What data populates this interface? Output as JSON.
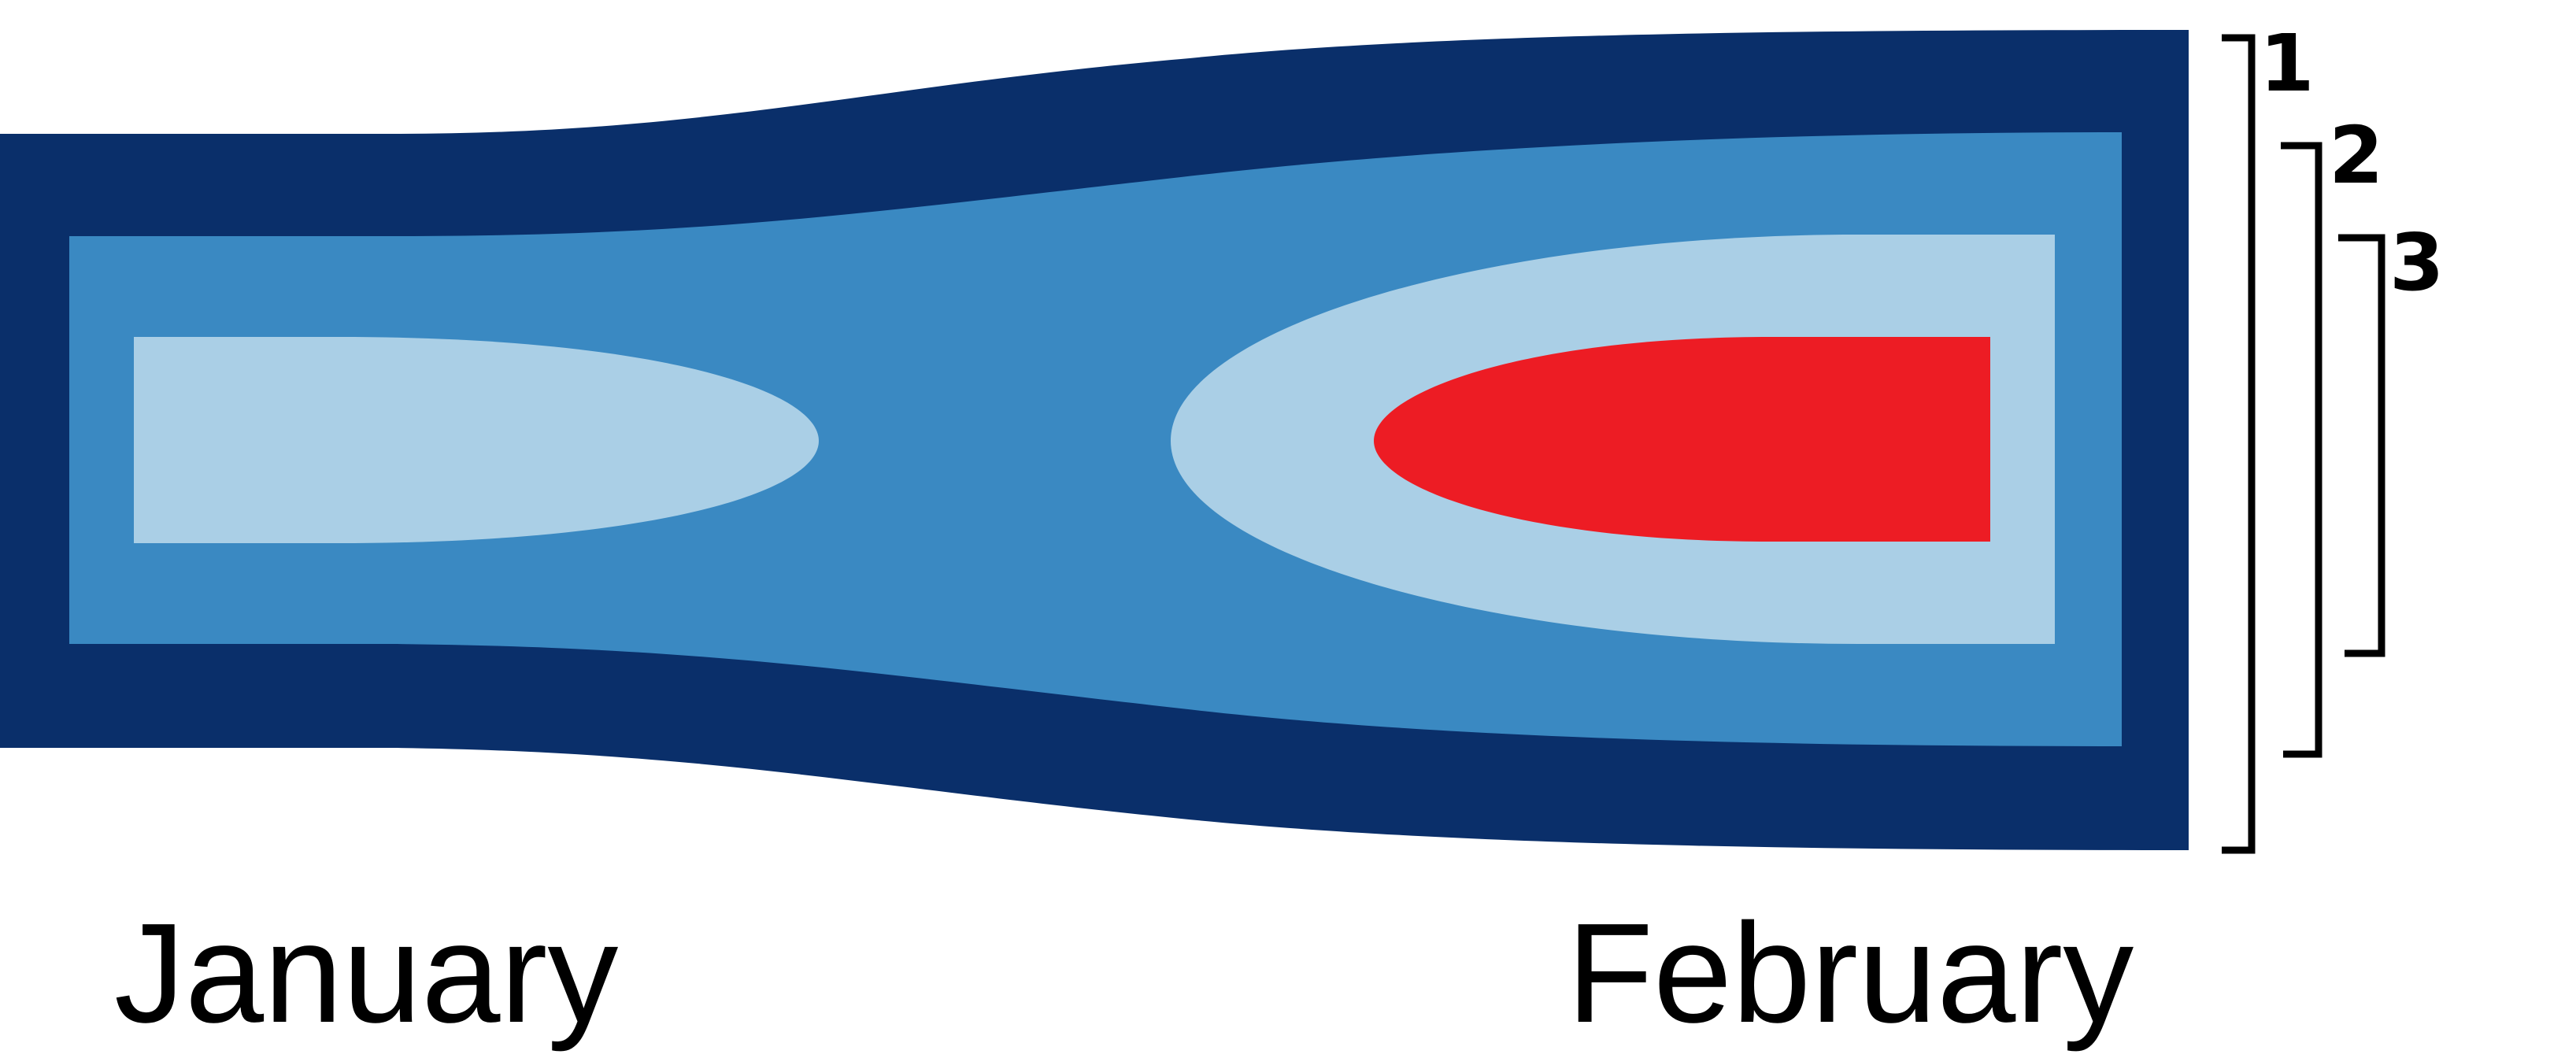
{
  "colors": {
    "band_dark": "#0a2f6a",
    "band_mid": "#3a89c2",
    "band_light": "#aacfe6",
    "core_red": "#ed1c24",
    "bracket": "#000000"
  },
  "months": [
    {
      "label": "January"
    },
    {
      "label": "February"
    }
  ],
  "levels": [
    {
      "label": "1"
    },
    {
      "label": "2"
    },
    {
      "label": "3"
    }
  ]
}
